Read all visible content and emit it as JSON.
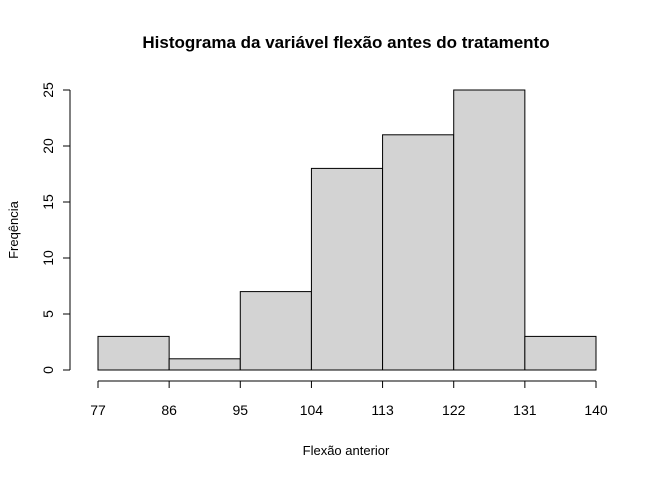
{
  "chart_data": {
    "type": "bar",
    "title": "Histograma da variável flexão antes do tratamento",
    "xlabel": "Flexão anterior",
    "ylabel": "Freqência",
    "bin_edges": [
      77,
      86,
      95,
      104,
      113,
      122,
      131,
      140
    ],
    "values": [
      3,
      1,
      7,
      18,
      21,
      25,
      3
    ],
    "x_ticks": [
      "77",
      "86",
      "95",
      "104",
      "113",
      "122",
      "131",
      "140"
    ],
    "y_ticks": [
      "0",
      "5",
      "10",
      "15",
      "20",
      "25"
    ],
    "xlim": [
      77,
      140
    ],
    "ylim": [
      0,
      25
    ],
    "grid": false,
    "bar_color": "#d3d3d3"
  }
}
